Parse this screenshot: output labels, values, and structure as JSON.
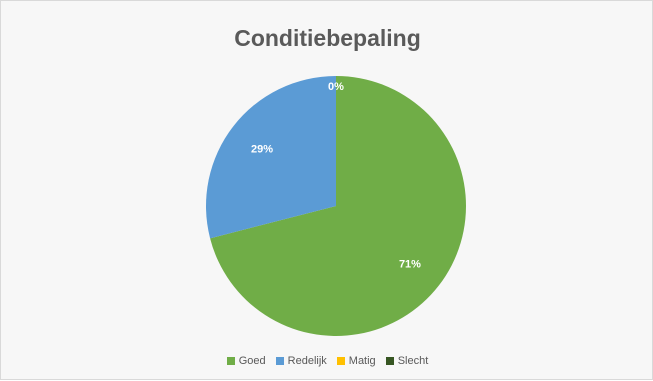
{
  "chart_data": {
    "type": "pie",
    "title": "Conditiebepaling",
    "categories": [
      "Goed",
      "Redelijk",
      "Matig",
      "Slecht"
    ],
    "values": [
      71,
      29,
      0,
      0
    ],
    "data_labels": [
      "71%",
      "29%",
      "0%",
      ""
    ],
    "colors": [
      "#70ad47",
      "#5b9bd5",
      "#ffc000",
      "#375623"
    ],
    "legend_position": "bottom"
  }
}
